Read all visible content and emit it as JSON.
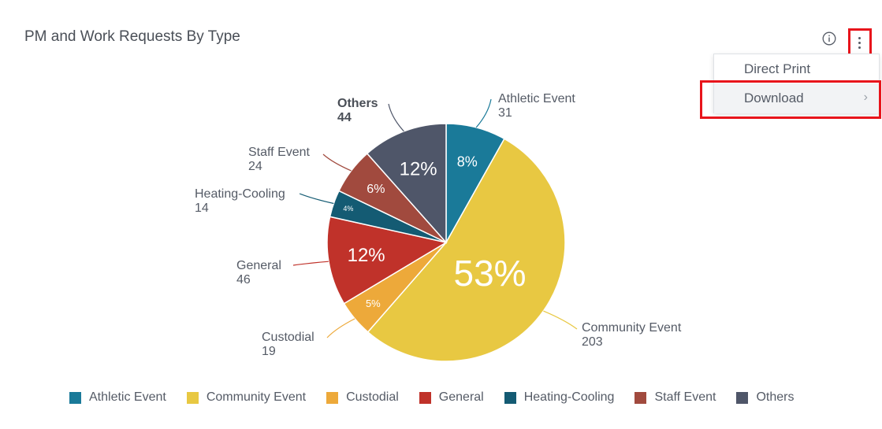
{
  "title": "PM and Work Requests By Type",
  "toolbar": {
    "info_icon": "info-circle-icon",
    "menu_icon": "kebab-vertical-icon"
  },
  "menu": {
    "items": [
      {
        "label": "Direct Print"
      },
      {
        "label": "Download",
        "chevron": "›"
      }
    ]
  },
  "chart_data": {
    "type": "pie",
    "title": "PM and Work Requests By Type",
    "legend_position": "bottom",
    "total": 381,
    "slices": [
      {
        "name": "Athletic Event",
        "value": 31,
        "pct_label": "8%",
        "color": "#1a7a99"
      },
      {
        "name": "Community Event",
        "value": 203,
        "pct_label": "53%",
        "color": "#e8c842"
      },
      {
        "name": "Custodial",
        "value": 19,
        "pct_label": "5%",
        "color": "#eda93a"
      },
      {
        "name": "General",
        "value": 46,
        "pct_label": "12%",
        "color": "#c0322a"
      },
      {
        "name": "Heating-Cooling",
        "value": 14,
        "pct_label": "4%",
        "color": "#145b73"
      },
      {
        "name": "Staff Event",
        "value": 24,
        "pct_label": "6%",
        "color": "#a14a3e"
      },
      {
        "name": "Others",
        "value": 44,
        "pct_label": "12%",
        "color": "#4f5669"
      }
    ]
  }
}
